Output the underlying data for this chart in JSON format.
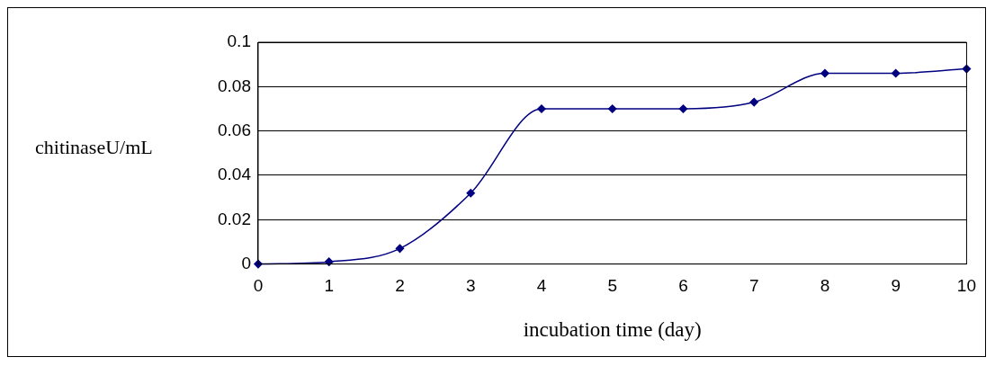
{
  "chart_data": {
    "type": "line",
    "xlabel": "incubation time (day)",
    "ylabel": "chitinaseU/mL",
    "x": [
      0,
      1,
      2,
      3,
      4,
      5,
      6,
      7,
      8,
      9,
      10
    ],
    "series": [
      {
        "color": "#000080",
        "values": [
          0,
          0.001,
          0.007,
          0.032,
          0.07,
          0.07,
          0.07,
          0.073,
          0.086,
          0.086,
          0.088
        ]
      }
    ],
    "xlim": [
      0,
      10
    ],
    "xticks": [
      0,
      1,
      2,
      3,
      4,
      5,
      6,
      7,
      8,
      9,
      10
    ],
    "ylim": [
      0,
      0.1
    ],
    "yticks": [
      0,
      0.02,
      0.04,
      0.06,
      0.08,
      0.1
    ],
    "grid": "y",
    "legend": false,
    "marker": "diamond",
    "line_style": "solid"
  }
}
